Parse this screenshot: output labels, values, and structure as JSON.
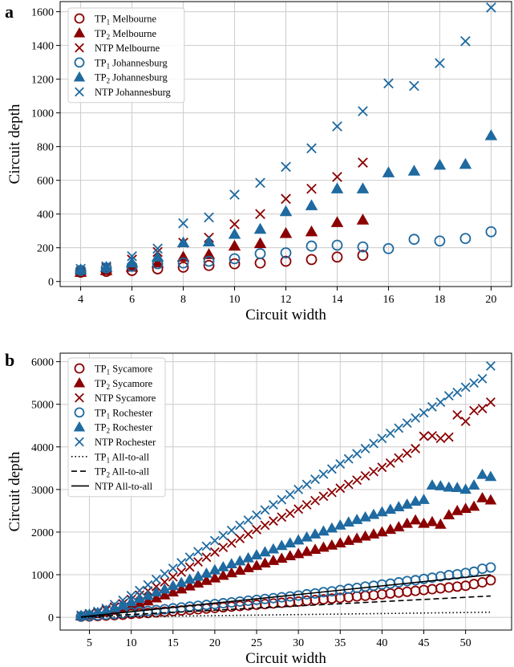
{
  "colors": {
    "melbourne": "#8b0000",
    "johannesburg": "#1f6aa0",
    "sycamore": "#8b0000",
    "rochester": "#1f6aa0",
    "grid": "#cccccc"
  },
  "chart_data": [
    {
      "panel_label": "a",
      "type": "scatter",
      "xlabel": "Circuit width",
      "ylabel": "Circuit depth",
      "xlim": [
        3.2,
        20.8
      ],
      "ylim": [
        -30,
        1660
      ],
      "xticks": [
        4,
        6,
        8,
        10,
        12,
        14,
        16,
        18,
        20
      ],
      "yticks": [
        0,
        200,
        400,
        600,
        800,
        1000,
        1200,
        1400,
        1600
      ],
      "grid": true,
      "legend_position": "top-left",
      "series": [
        {
          "name": "TP1 Melbourne",
          "label_main": "TP",
          "label_sub": "1",
          "label_rest": " Melbourne",
          "marker": "circle",
          "color": "#8b0000",
          "x": [
            4,
            5,
            6,
            7,
            8,
            9,
            10,
            11,
            12,
            13,
            14,
            15
          ],
          "y": [
            55,
            60,
            65,
            75,
            85,
            95,
            105,
            110,
            120,
            130,
            145,
            155
          ]
        },
        {
          "name": "TP2 Melbourne",
          "label_main": "TP",
          "label_sub": "2",
          "label_rest": " Melbourne",
          "marker": "triangle",
          "color": "#8b0000",
          "x": [
            4,
            5,
            6,
            7,
            8,
            9,
            10,
            11,
            12,
            13,
            14,
            15
          ],
          "y": [
            55,
            65,
            85,
            110,
            145,
            160,
            210,
            225,
            285,
            295,
            350,
            365
          ]
        },
        {
          "name": "NTP Melbourne",
          "label_main": "NTP Melbourne",
          "label_sub": "",
          "label_rest": "",
          "marker": "x",
          "color": "#8b0000",
          "x": [
            4,
            5,
            6,
            7,
            8,
            9,
            10,
            11,
            12,
            13,
            14,
            15
          ],
          "y": [
            60,
            80,
            130,
            175,
            230,
            260,
            340,
            400,
            490,
            550,
            620,
            705
          ]
        },
        {
          "name": "TP1 Johannesburg",
          "label_main": "TP",
          "label_sub": "1",
          "label_rest": " Johannesburg",
          "marker": "circle",
          "color": "#1f6aa0",
          "x": [
            4,
            5,
            6,
            7,
            8,
            9,
            10,
            11,
            12,
            13,
            14,
            15,
            16,
            17,
            18,
            19,
            20
          ],
          "y": [
            65,
            80,
            90,
            105,
            110,
            120,
            135,
            165,
            170,
            210,
            215,
            205,
            195,
            250,
            240,
            255,
            295
          ]
        },
        {
          "name": "TP2 Johannesburg",
          "label_main": "TP",
          "label_sub": "2",
          "label_rest": " Johannesburg",
          "marker": "triangle",
          "color": "#1f6aa0",
          "x": [
            4,
            5,
            6,
            7,
            8,
            9,
            10,
            11,
            12,
            13,
            14,
            15,
            16,
            17,
            18,
            19,
            20
          ],
          "y": [
            70,
            85,
            110,
            145,
            230,
            235,
            280,
            310,
            415,
            450,
            550,
            550,
            645,
            655,
            690,
            695,
            865
          ]
        },
        {
          "name": "NTP Johannesburg",
          "label_main": "NTP Johannesburg",
          "label_sub": "",
          "label_rest": "",
          "marker": "x",
          "color": "#1f6aa0",
          "x": [
            4,
            5,
            6,
            7,
            8,
            9,
            10,
            11,
            12,
            13,
            14,
            15,
            16,
            17,
            18,
            19,
            20
          ],
          "y": [
            75,
            90,
            150,
            195,
            345,
            380,
            515,
            585,
            680,
            790,
            920,
            1010,
            1175,
            1160,
            1295,
            1425,
            1625
          ]
        }
      ]
    },
    {
      "panel_label": "b",
      "type": "scatter",
      "xlabel": "Circuit width",
      "ylabel": "Circuit depth",
      "xlim": [
        1.5,
        55.5
      ],
      "ylim": [
        -300,
        6200
      ],
      "xticks": [
        5,
        10,
        15,
        20,
        25,
        30,
        35,
        40,
        45,
        50
      ],
      "yticks": [
        0,
        1000,
        2000,
        3000,
        4000,
        5000,
        6000
      ],
      "grid": true,
      "legend_position": "top-left",
      "scatter_x": [
        4,
        5,
        6,
        7,
        8,
        9,
        10,
        11,
        12,
        13,
        14,
        15,
        16,
        17,
        18,
        19,
        20,
        21,
        22,
        23,
        24,
        25,
        26,
        27,
        28,
        29,
        30,
        31,
        32,
        33,
        34,
        35,
        36,
        37,
        38,
        39,
        40,
        41,
        42,
        43,
        44,
        45,
        46,
        47,
        48,
        49,
        50,
        51,
        52,
        53
      ],
      "series": [
        {
          "name": "TP1 Sycamore",
          "label_main": "TP",
          "label_sub": "1",
          "label_rest": " Sycamore",
          "marker": "circle",
          "color": "#8b0000",
          "y": [
            15,
            20,
            30,
            40,
            50,
            60,
            80,
            90,
            100,
            115,
            130,
            145,
            160,
            175,
            190,
            205,
            220,
            235,
            250,
            265,
            280,
            295,
            310,
            325,
            340,
            355,
            370,
            390,
            405,
            420,
            440,
            455,
            470,
            490,
            505,
            520,
            540,
            560,
            580,
            600,
            620,
            640,
            660,
            680,
            700,
            720,
            740,
            780,
            820,
            870
          ]
        },
        {
          "name": "TP2 Sycamore",
          "label_main": "TP",
          "label_sub": "2",
          "label_rest": " Sycamore",
          "marker": "triangle",
          "color": "#8b0000",
          "y": [
            30,
            50,
            80,
            115,
            160,
            210,
            260,
            320,
            380,
            450,
            520,
            590,
            660,
            730,
            800,
            860,
            920,
            980,
            1040,
            1100,
            1160,
            1210,
            1270,
            1330,
            1380,
            1440,
            1490,
            1540,
            1590,
            1640,
            1690,
            1740,
            1800,
            1850,
            1900,
            1950,
            2000,
            2060,
            2120,
            2200,
            2280,
            2200,
            2240,
            2180,
            2400,
            2500,
            2550,
            2600,
            2800,
            2750
          ]
        },
        {
          "name": "NTP Sycamore",
          "label_main": "NTP Sycamore",
          "label_sub": "",
          "label_rest": "",
          "marker": "x",
          "color": "#8b0000",
          "y": [
            40,
            70,
            110,
            170,
            240,
            320,
            420,
            520,
            620,
            720,
            830,
            950,
            1060,
            1180,
            1300,
            1410,
            1530,
            1640,
            1740,
            1850,
            1950,
            2060,
            2160,
            2260,
            2350,
            2440,
            2540,
            2640,
            2740,
            2840,
            2930,
            3030,
            3120,
            3220,
            3320,
            3420,
            3520,
            3620,
            3740,
            3850,
            3960,
            4250,
            4260,
            4200,
            4230,
            4750,
            4600,
            4850,
            4900,
            5050
          ]
        },
        {
          "name": "TP1 Rochester",
          "label_main": "TP",
          "label_sub": "1",
          "label_rest": " Rochester",
          "marker": "circle",
          "color": "#1f6aa0",
          "y": [
            20,
            30,
            45,
            60,
            75,
            95,
            115,
            135,
            150,
            170,
            190,
            210,
            230,
            250,
            270,
            290,
            310,
            330,
            350,
            370,
            390,
            410,
            430,
            450,
            470,
            490,
            510,
            540,
            560,
            590,
            610,
            640,
            670,
            690,
            720,
            740,
            770,
            790,
            820,
            850,
            870,
            900,
            930,
            960,
            990,
            1010,
            1040,
            1070,
            1140,
            1170
          ]
        },
        {
          "name": "TP2 Rochester",
          "label_main": "TP",
          "label_sub": "2",
          "label_rest": " Rochester",
          "marker": "triangle",
          "color": "#1f6aa0",
          "y": [
            40,
            70,
            110,
            160,
            220,
            290,
            360,
            440,
            510,
            590,
            660,
            740,
            810,
            890,
            960,
            1030,
            1110,
            1180,
            1250,
            1320,
            1390,
            1460,
            1530,
            1600,
            1680,
            1740,
            1810,
            1880,
            1950,
            2020,
            2090,
            2160,
            2230,
            2290,
            2350,
            2410,
            2470,
            2530,
            2590,
            2650,
            2720,
            2760,
            3100,
            3080,
            3050,
            3040,
            3000,
            3100,
            3350,
            3300
          ]
        },
        {
          "name": "NTP Rochester",
          "label_main": "NTP Rochester",
          "label_sub": "",
          "label_rest": "",
          "marker": "x",
          "color": "#1f6aa0",
          "y": [
            50,
            90,
            140,
            210,
            300,
            400,
            510,
            630,
            760,
            890,
            1020,
            1150,
            1280,
            1410,
            1540,
            1670,
            1800,
            1920,
            2040,
            2160,
            2280,
            2400,
            2520,
            2640,
            2760,
            2880,
            3000,
            3120,
            3240,
            3360,
            3480,
            3600,
            3720,
            3840,
            3960,
            4080,
            4200,
            4320,
            4440,
            4560,
            4680,
            4800,
            4940,
            5050,
            5200,
            5280,
            5400,
            5500,
            5600,
            5900
          ]
        },
        {
          "name": "TP1 All-to-all",
          "label_main": "TP",
          "label_sub": "1",
          "label_rest": " All-to-all",
          "marker": "line-dotted",
          "color": "#000000",
          "line_x": [
            4,
            53
          ],
          "line_y": [
            0,
            120
          ]
        },
        {
          "name": "TP2 All-to-all",
          "label_main": "TP",
          "label_sub": "2",
          "label_rest": " All-to-all",
          "marker": "line-dashed",
          "color": "#000000",
          "line_x": [
            4,
            53
          ],
          "line_y": [
            5,
            500
          ]
        },
        {
          "name": "NTP All-to-all",
          "label_main": "NTP All-to-all",
          "label_sub": "",
          "label_rest": "",
          "marker": "line-solid",
          "color": "#000000",
          "line_x": [
            4,
            53
          ],
          "line_y": [
            10,
            1000
          ]
        }
      ]
    }
  ]
}
